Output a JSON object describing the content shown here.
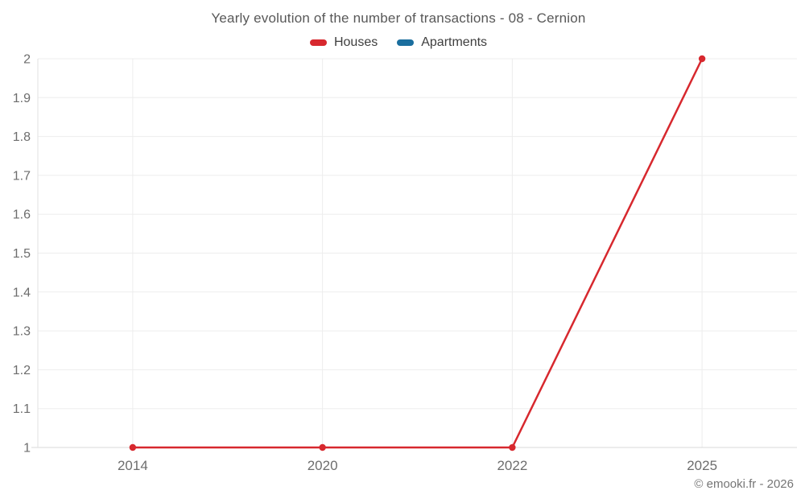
{
  "footer": {
    "copyright": "© emooki.fr - 2026"
  },
  "chart_data": {
    "type": "line",
    "title": "Yearly evolution of the number of transactions - 08 - Cernion",
    "categories": [
      "2014",
      "2020",
      "2022",
      "2025"
    ],
    "series": [
      {
        "name": "Houses",
        "color": "#d7282e",
        "values": [
          1,
          1,
          1,
          2
        ]
      },
      {
        "name": "Apartments",
        "color": "#1a6e9e",
        "values": []
      }
    ],
    "ylim": [
      1,
      2
    ],
    "ytick_step": 0.1,
    "ytick_labels": [
      "1",
      "1.1",
      "1.2",
      "1.3",
      "1.4",
      "1.5",
      "1.6",
      "1.7",
      "1.8",
      "1.9",
      "2"
    ],
    "grid": true,
    "legend_position": "top",
    "xlabel": "",
    "ylabel": ""
  }
}
